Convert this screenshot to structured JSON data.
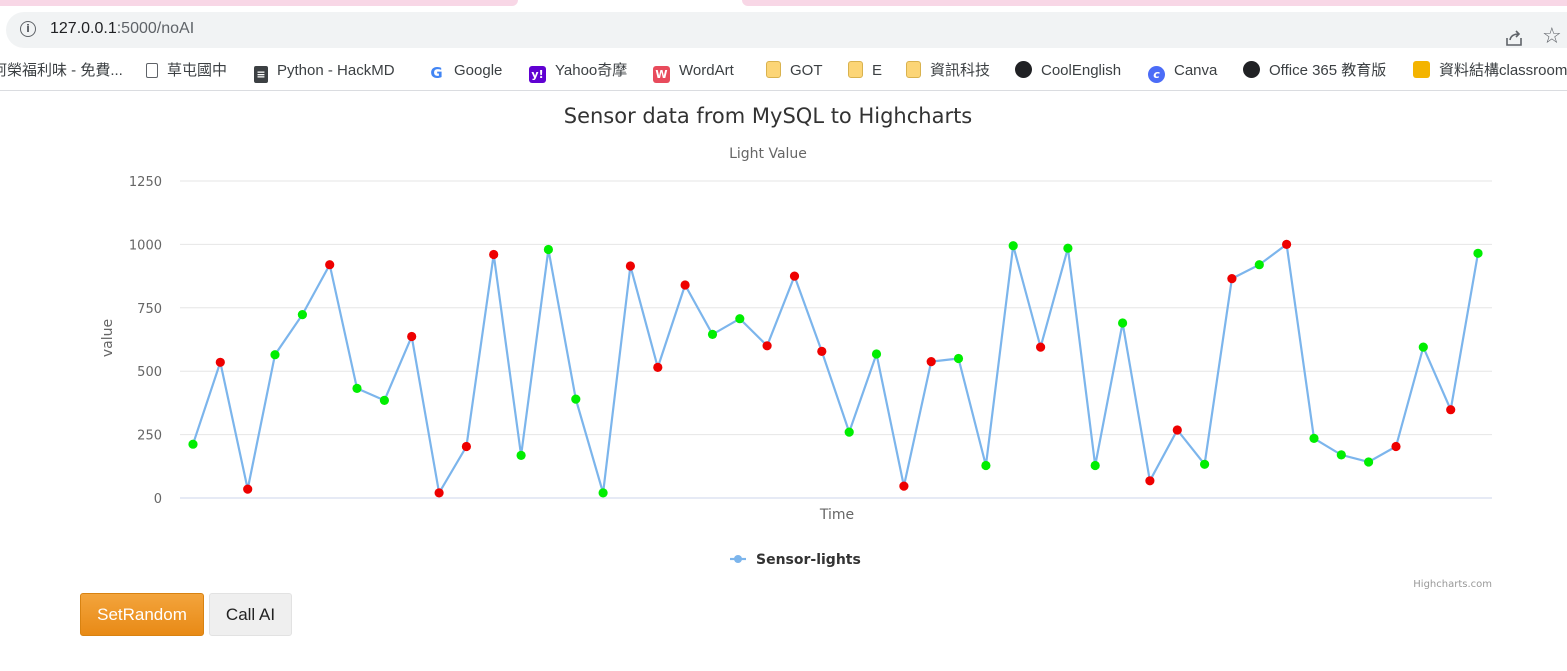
{
  "browser": {
    "url_host": "127.0.0.1",
    "url_path": ":5000/noAI",
    "bookmarks": [
      {
        "label": "阿榮福利味 - 免費...",
        "icon": "page-icon"
      },
      {
        "label": "草屯國中",
        "icon": "page-icon"
      },
      {
        "label": "Python - HackMD",
        "icon": "document-icon"
      },
      {
        "label": "Google",
        "icon": "google-icon"
      },
      {
        "label": "Yahoo奇摩",
        "icon": "yahoo-icon"
      },
      {
        "label": "WordArt",
        "icon": "wordart-icon"
      },
      {
        "label": "GOT",
        "icon": "folder-icon"
      },
      {
        "label": "E",
        "icon": "folder-icon"
      },
      {
        "label": "資訊科技",
        "icon": "folder-icon"
      },
      {
        "label": "CoolEnglish",
        "icon": "globe-icon"
      },
      {
        "label": "Canva",
        "icon": "canva-icon"
      },
      {
        "label": "Office 365 教育版",
        "icon": "globe-icon"
      },
      {
        "label": "資料結構classroom",
        "icon": "classroom-icon"
      }
    ]
  },
  "chart_data": {
    "type": "line",
    "title": "Sensor data from MySQL to Highcharts",
    "subtitle": "Light Value",
    "xlabel": "Time",
    "ylabel": "value",
    "ylim": [
      0,
      1250
    ],
    "yticks": [
      "0",
      "250",
      "500",
      "750",
      "1000",
      "1250"
    ],
    "grid": true,
    "legend_position": "bottom-center",
    "credits": "Highcharts.com",
    "line_color": "#7cb5ec",
    "high_color": "#00ee00",
    "low_color": "#ee0000",
    "series": [
      {
        "name": "Sensor-lights",
        "values": [
          212,
          535,
          35,
          565,
          723,
          920,
          432,
          385,
          637,
          20,
          203,
          960,
          168,
          980,
          390,
          20,
          915,
          515,
          840,
          645,
          707,
          600,
          875,
          578,
          260,
          568,
          47,
          538,
          550,
          128,
          995,
          595,
          985,
          128,
          690,
          68,
          268,
          133,
          865,
          920,
          1000,
          235,
          170,
          142,
          203,
          595,
          348,
          965
        ],
        "marker_colors": [
          "green",
          "red",
          "red",
          "green",
          "green",
          "red",
          "green",
          "green",
          "red",
          "red",
          "red",
          "red",
          "green",
          "green",
          "green",
          "green",
          "red",
          "red",
          "red",
          "green",
          "green",
          "red",
          "red",
          "red",
          "green",
          "green",
          "red",
          "red",
          "green",
          "green",
          "green",
          "red",
          "green",
          "green",
          "green",
          "red",
          "red",
          "green",
          "red",
          "green",
          "red",
          "green",
          "green",
          "green",
          "red",
          "green",
          "red",
          "green"
        ]
      }
    ]
  },
  "buttons": {
    "set_random": "SetRandom",
    "call_ai": "Call AI"
  }
}
